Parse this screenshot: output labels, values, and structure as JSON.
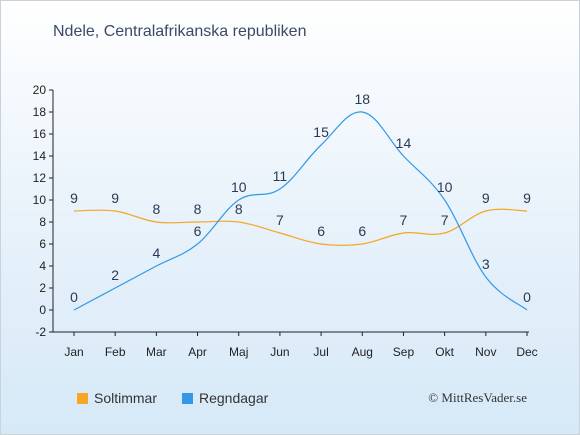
{
  "title": "Ndele, Centralafrikanska republiken",
  "credit": "© MittResVader.se",
  "chart_data": {
    "type": "line",
    "categories": [
      "Jan",
      "Feb",
      "Mar",
      "Apr",
      "Maj",
      "Jun",
      "Jul",
      "Aug",
      "Sep",
      "Okt",
      "Nov",
      "Dec"
    ],
    "ylim": [
      -2,
      20
    ],
    "yticks": [
      -2,
      0,
      2,
      4,
      6,
      8,
      10,
      12,
      14,
      16,
      18,
      20
    ],
    "grid": false,
    "legend_position": "bottom-left",
    "series": [
      {
        "name": "Soltimmar",
        "color": "#f5a623",
        "values": [
          9,
          9,
          8,
          8,
          8,
          7,
          6,
          6,
          7,
          7,
          9,
          9
        ]
      },
      {
        "name": "Regndagar",
        "color": "#3399e6",
        "values": [
          0,
          2,
          4,
          6,
          10,
          11,
          15,
          18,
          14,
          10,
          3,
          0
        ]
      }
    ]
  }
}
